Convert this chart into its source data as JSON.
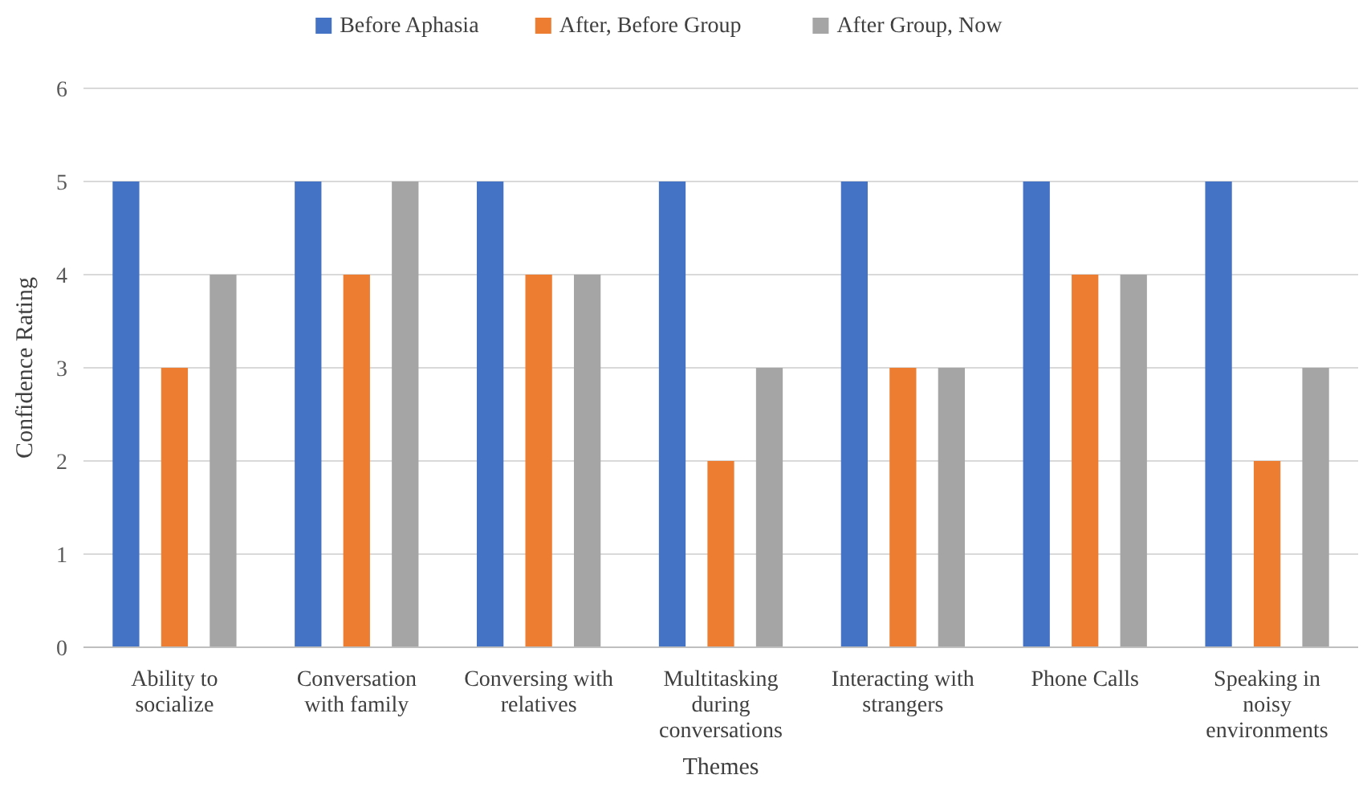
{
  "chart_data": {
    "type": "bar",
    "xlabel": "Themes",
    "ylabel": "Confidence Rating",
    "categories": [
      "Ability to socialize",
      "Conversation with family",
      "Conversing with relatives",
      "Multitasking during conversations",
      "Interacting with strangers",
      "Phone Calls",
      "Speaking in noisy environments"
    ],
    "series": [
      {
        "name": "Before Aphasia",
        "color": "#4472c4",
        "values": [
          5,
          5,
          5,
          5,
          5,
          5,
          5
        ]
      },
      {
        "name": "After, Before Group",
        "color": "#ed7d31",
        "values": [
          3,
          4,
          4,
          2,
          3,
          4,
          2
        ]
      },
      {
        "name": "After Group, Now",
        "color": "#a5a5a5",
        "values": [
          4,
          5,
          4,
          3,
          3,
          4,
          3
        ]
      }
    ],
    "ylim": [
      0,
      6
    ],
    "yticks": [
      0,
      1,
      2,
      3,
      4,
      5,
      6
    ],
    "grid": "y",
    "legend": "top"
  }
}
